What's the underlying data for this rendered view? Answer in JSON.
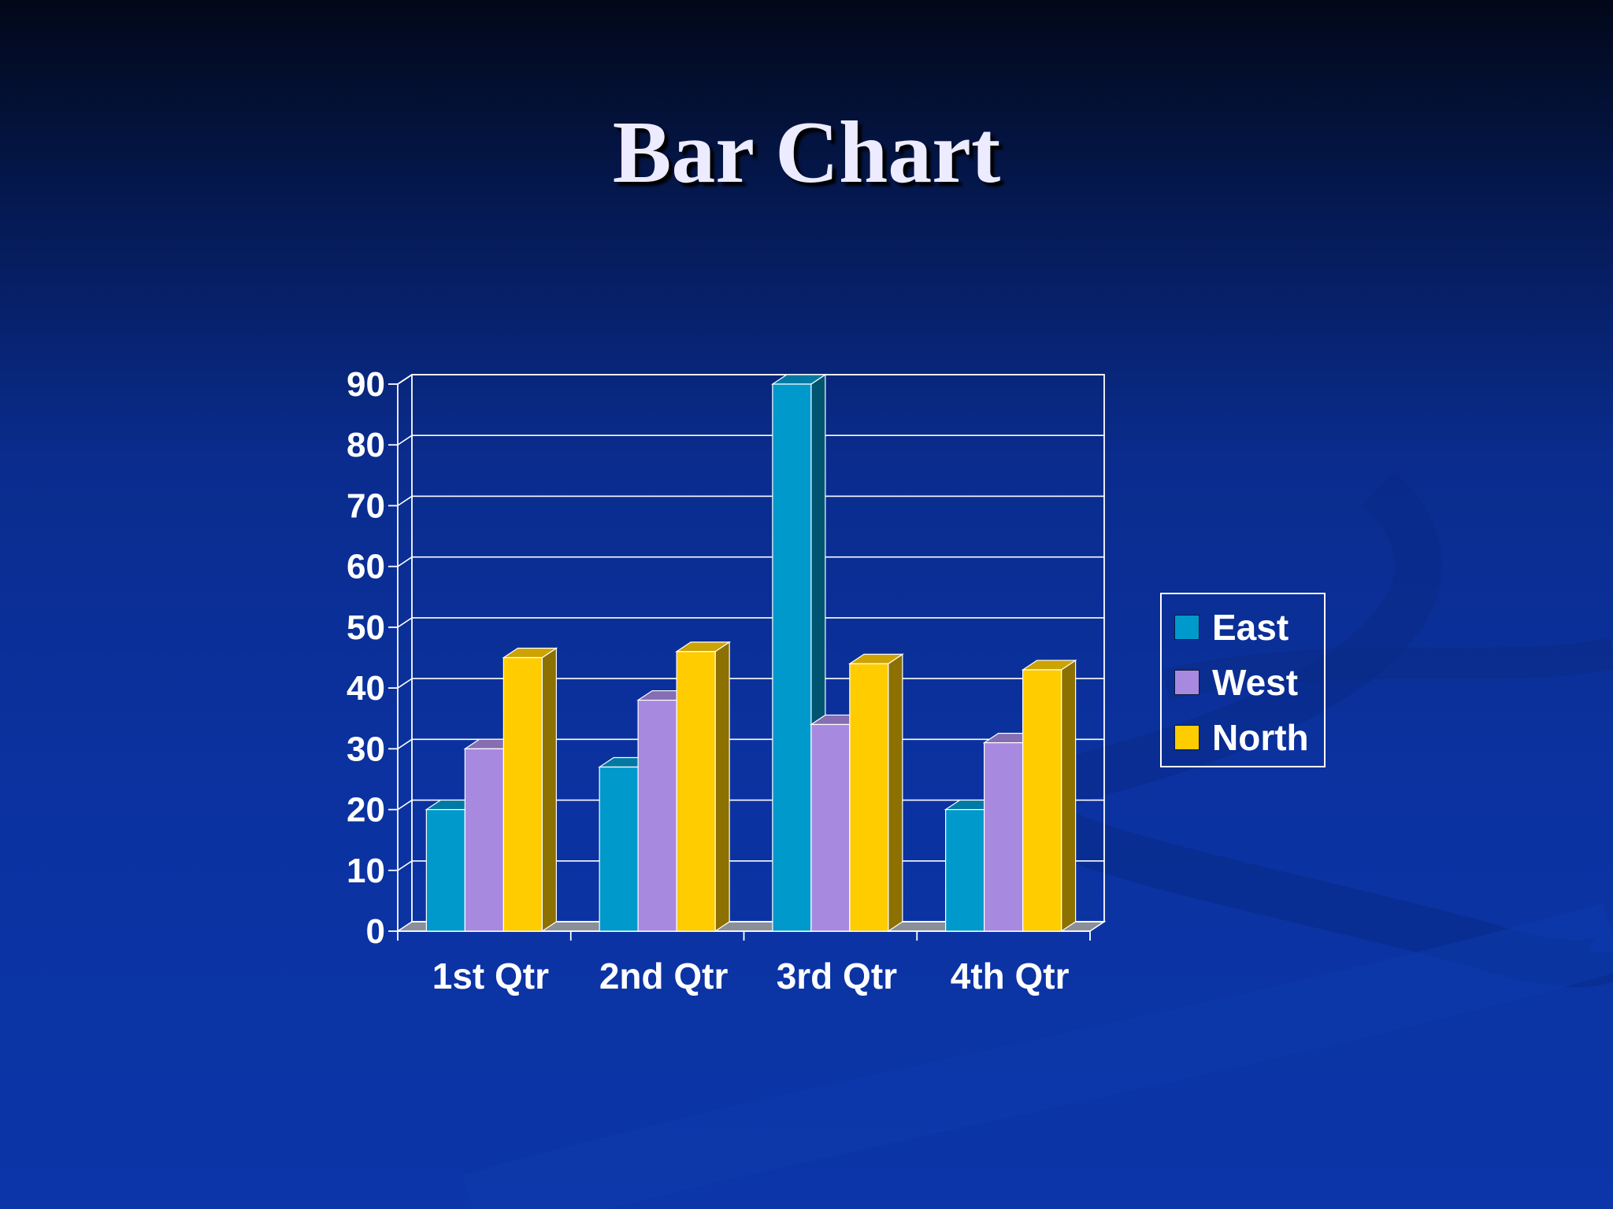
{
  "title": "Bar Chart",
  "colors": {
    "east": "#0099cc",
    "west": "#a889e0",
    "north": "#ffcc00",
    "background": "#0b32a0"
  },
  "chart_data": {
    "type": "bar",
    "title": "Bar Chart",
    "categories": [
      "1st Qtr",
      "2nd Qtr",
      "3rd Qtr",
      "4th Qtr"
    ],
    "series": [
      {
        "name": "East",
        "values": [
          20,
          27,
          90,
          20
        ]
      },
      {
        "name": "West",
        "values": [
          30,
          38,
          34,
          31
        ]
      },
      {
        "name": "North",
        "values": [
          45,
          46,
          44,
          43
        ]
      }
    ],
    "yticks": [
      "0",
      "10",
      "20",
      "30",
      "40",
      "50",
      "60",
      "70",
      "80",
      "90"
    ],
    "ylim": [
      0,
      90
    ],
    "xlabel": "",
    "ylabel": "",
    "grid": true,
    "legend_position": "right",
    "style": "3d-column"
  }
}
